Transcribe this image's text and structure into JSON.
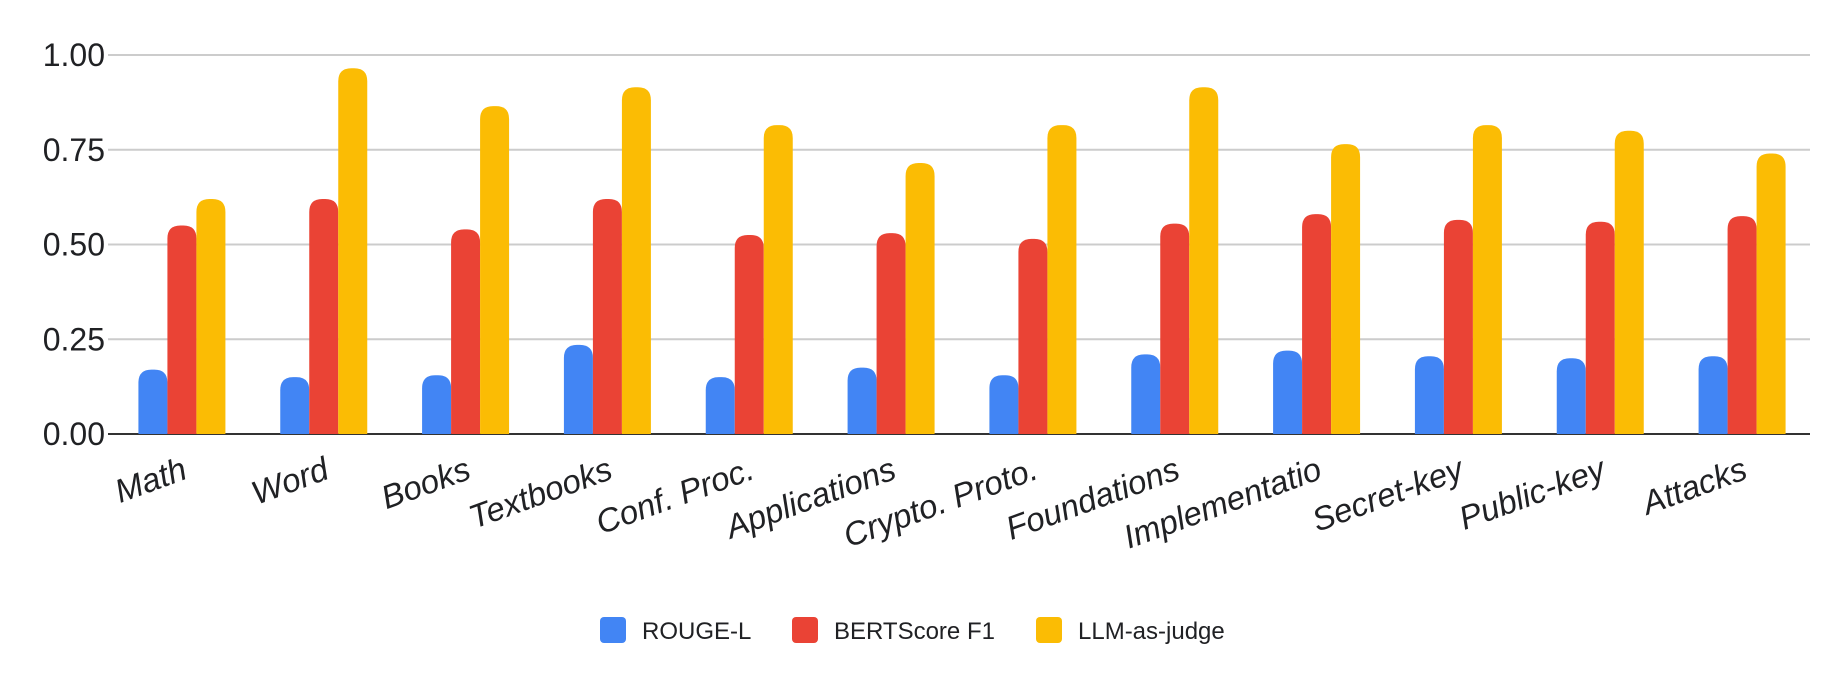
{
  "chart_data": {
    "type": "bar",
    "title": "",
    "xlabel": "",
    "ylabel": "",
    "categories": [
      "Math",
      "Word",
      "Books",
      "Textbooks",
      "Conf. Proc.",
      "Applications",
      "Crypto. Proto.",
      "Foundations",
      "Implementatio",
      "Secret-key",
      "Public-key",
      "Attacks"
    ],
    "series": [
      {
        "name": "ROUGE-L",
        "color": "#4285f4",
        "values": [
          0.17,
          0.15,
          0.155,
          0.235,
          0.15,
          0.175,
          0.155,
          0.21,
          0.22,
          0.205,
          0.2,
          0.205
        ]
      },
      {
        "name": "BERTScore F1",
        "color": "#ea4335",
        "values": [
          0.55,
          0.62,
          0.54,
          0.62,
          0.525,
          0.53,
          0.515,
          0.555,
          0.58,
          0.565,
          0.56,
          0.575
        ]
      },
      {
        "name": "LLM-as-judge",
        "color": "#fbbc04",
        "values": [
          0.62,
          0.965,
          0.865,
          0.915,
          0.815,
          0.715,
          0.815,
          0.915,
          0.765,
          0.815,
          0.8,
          0.74
        ]
      }
    ],
    "ylim": [
      0,
      1
    ],
    "yticks": [
      "0.00",
      "0.25",
      "0.50",
      "0.75",
      "1.00"
    ],
    "ytick_values": [
      0,
      0.25,
      0.5,
      0.75,
      1.0
    ],
    "grid": true,
    "legend_position": "bottom-center"
  }
}
